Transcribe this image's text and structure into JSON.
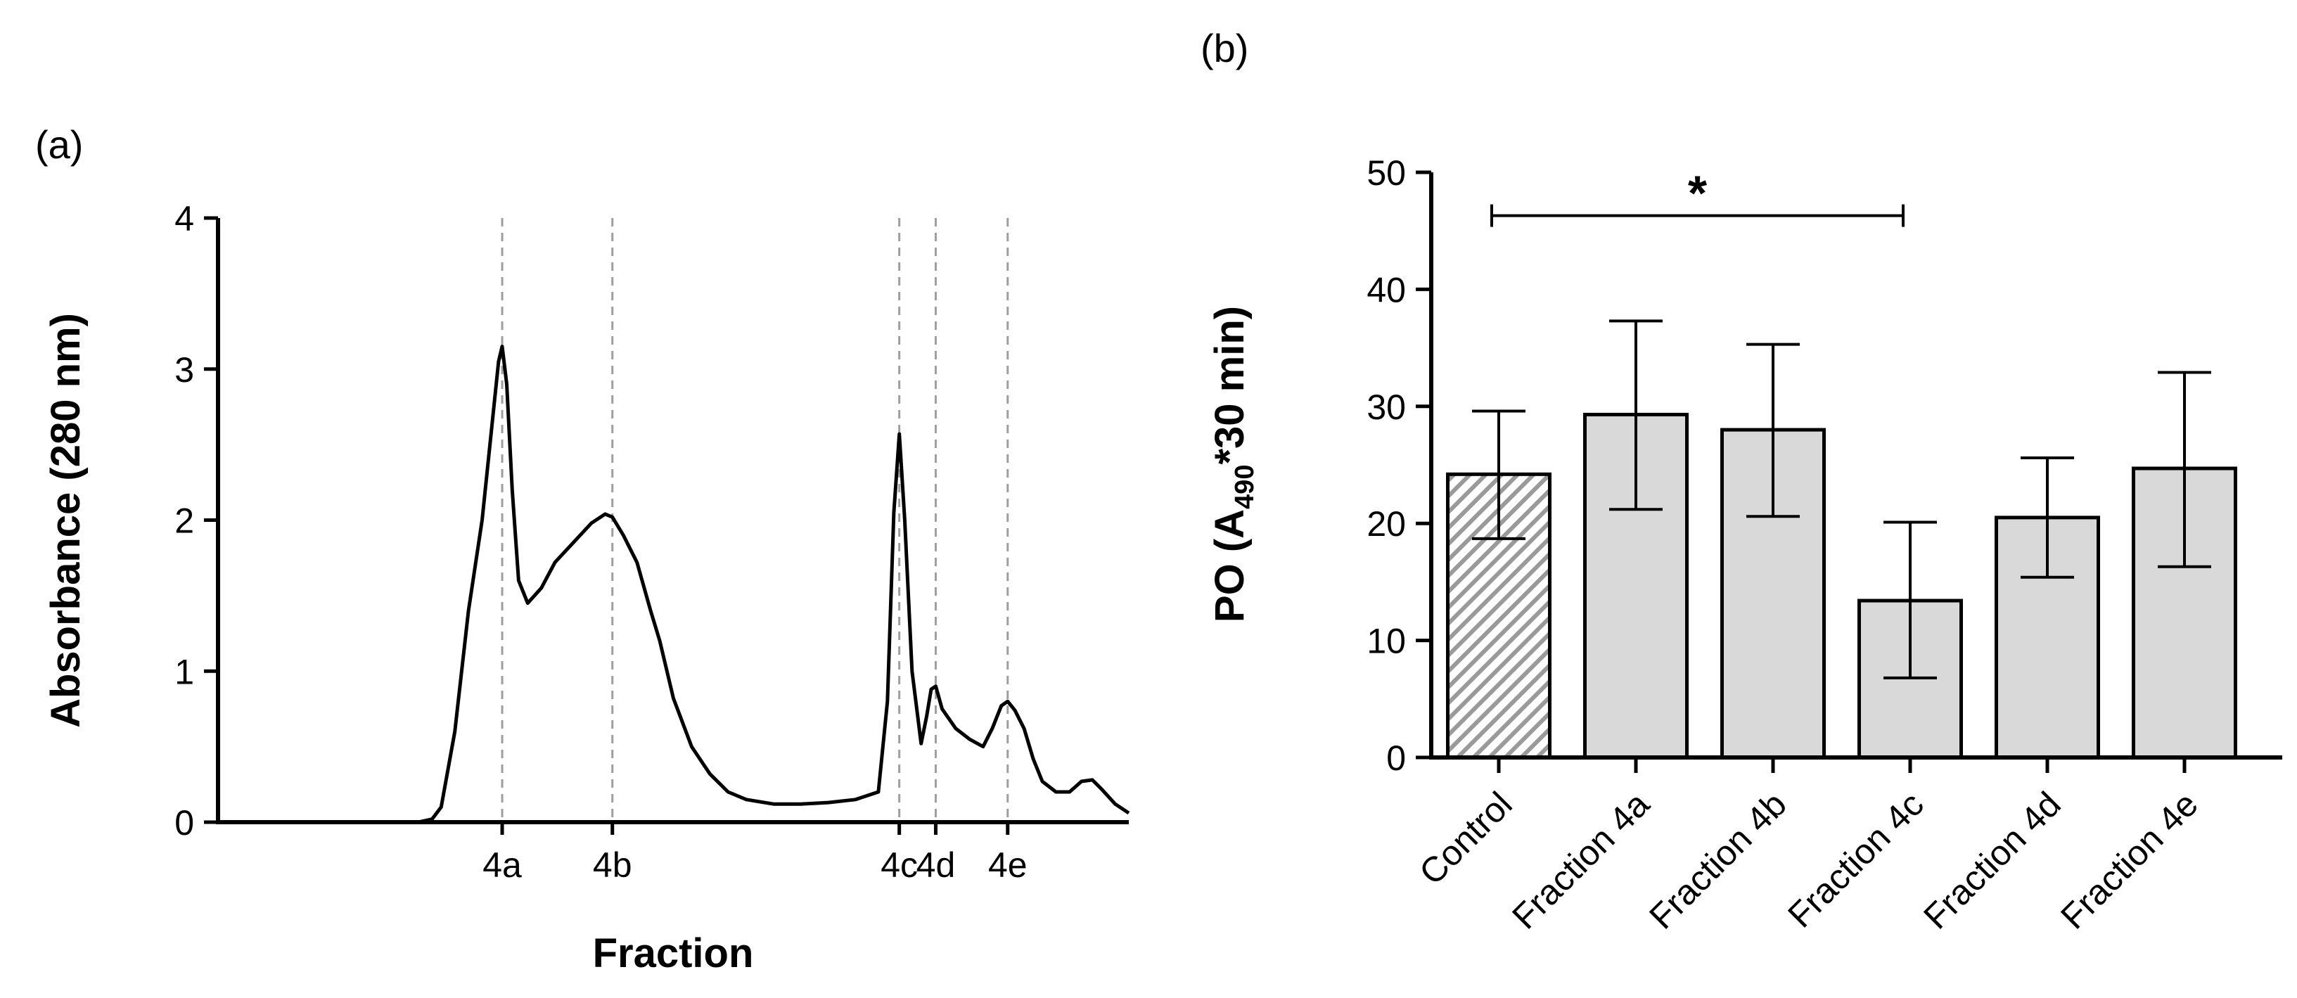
{
  "chart_data": [
    {
      "panel": "(a)",
      "type": "line",
      "xlabel": "Fraction",
      "ylabel": "Absorbance (280 nm)",
      "ylim": [
        0,
        4
      ],
      "yticks": [
        "0",
        "1",
        "2",
        "3",
        "4"
      ],
      "xlim": [
        0,
        100
      ],
      "fractions": [
        {
          "label": "4a",
          "x": 31.2
        },
        {
          "label": "4b",
          "x": 43.3
        },
        {
          "label": "4c",
          "x": 74.8
        },
        {
          "label": "4d",
          "x": 78.8
        },
        {
          "label": "4e",
          "x": 86.7
        }
      ],
      "series": [
        {
          "x": [
            0,
            22.0,
            23.5,
            24.5,
            26.0,
            27.5,
            29.0,
            30.2,
            30.8,
            31.2,
            31.7,
            32.3,
            33.0,
            34.0,
            35.5,
            37.0,
            39.0,
            41.0,
            42.5,
            43.3,
            44.5,
            46.0,
            47.5,
            48.5,
            50.0,
            52.0,
            54.0,
            56.0,
            58.0,
            61.0,
            64.0,
            67.0,
            70.0,
            72.5,
            73.5,
            74.2,
            74.8,
            75.4,
            76.2,
            77.2,
            77.8,
            78.3,
            78.8,
            79.5,
            81.0,
            82.5,
            84.0,
            85.0,
            86.0,
            86.7,
            87.5,
            88.5,
            89.5,
            90.5,
            92.0,
            93.5,
            94.8,
            96.0,
            97.0,
            98.5,
            100.0
          ],
          "values": [
            0,
            0,
            0.02,
            0.1,
            0.6,
            1.4,
            2.0,
            2.7,
            3.05,
            3.15,
            2.9,
            2.2,
            1.6,
            1.45,
            1.55,
            1.72,
            1.85,
            1.98,
            2.04,
            2.02,
            1.9,
            1.72,
            1.4,
            1.2,
            0.82,
            0.5,
            0.32,
            0.2,
            0.15,
            0.12,
            0.12,
            0.13,
            0.15,
            0.2,
            0.8,
            2.05,
            2.57,
            2.0,
            1.0,
            0.52,
            0.7,
            0.88,
            0.9,
            0.75,
            0.62,
            0.55,
            0.5,
            0.62,
            0.77,
            0.8,
            0.74,
            0.62,
            0.42,
            0.27,
            0.2,
            0.2,
            0.27,
            0.28,
            0.22,
            0.12,
            0.06
          ]
        }
      ]
    },
    {
      "panel": "(b)",
      "type": "bar",
      "ylabel_prefix": "PO (A",
      "ylabel_sub": "490",
      "ylabel_suffix": "*30 min)",
      "ylim": [
        0,
        50
      ],
      "yticks": [
        "0",
        "10",
        "20",
        "30",
        "40",
        "50"
      ],
      "categories": [
        "Control",
        "Fraction 4a",
        "Fraction 4b",
        "Fraction 4c",
        "Fraction 4d",
        "Fraction 4e"
      ],
      "values": [
        24.2,
        29.3,
        28.0,
        13.4,
        20.5,
        24.7
      ],
      "error_low": [
        18.7,
        21.2,
        20.6,
        6.8,
        15.4,
        16.3
      ],
      "error_high": [
        29.6,
        37.3,
        35.3,
        20.1,
        25.6,
        32.9
      ],
      "fill": "#d9d9d9",
      "control_pattern": "hatched",
      "significance": {
        "from": "Control",
        "to": "Fraction 4c",
        "y": 46.3,
        "label": "*"
      }
    }
  ]
}
